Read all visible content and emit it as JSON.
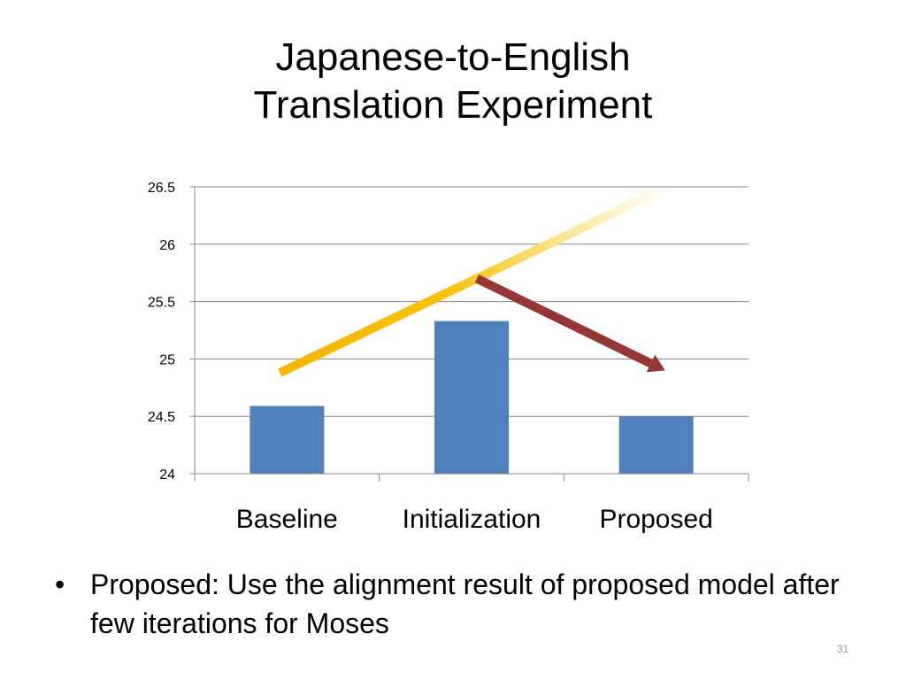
{
  "slide": {
    "title_line1": "Japanese-to-English",
    "title_line2": "Translation Experiment",
    "bullet_marker": "•",
    "bullet_text": "Proposed: Use the alignment result of proposed model after few iterations for Moses",
    "page_number": "31"
  },
  "colors": {
    "bar": "#4f81bd",
    "gridline": "#868686",
    "arrow_up": "#f7b500",
    "arrow_down": "#953735"
  },
  "chart_data": {
    "type": "bar",
    "categories": [
      "Baseline",
      "Initialization",
      "Proposed"
    ],
    "values": [
      24.59,
      25.33,
      24.5
    ],
    "ylim": [
      24,
      26.5
    ],
    "yticks": [
      "24",
      "24.5",
      "25",
      "25.5",
      "26",
      "26.5"
    ],
    "grid": true,
    "annotations": [
      {
        "type": "arrow",
        "description": "rising arrow",
        "from": {
          "category": "Baseline",
          "y": 24.88
        },
        "to": {
          "category": "Proposed",
          "y": 26.45
        }
      },
      {
        "type": "arrow",
        "description": "falling arrow",
        "from": {
          "category": "Initialization",
          "y": 25.7
        },
        "to": {
          "category": "Proposed",
          "y": 24.9
        }
      }
    ]
  }
}
